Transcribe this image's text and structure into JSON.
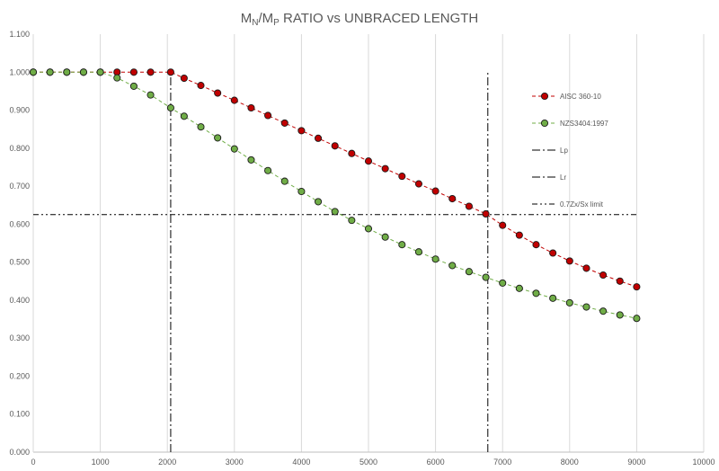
{
  "chart_data": {
    "type": "line",
    "title": {
      "main": "M",
      "sub1": "N",
      "mid": "/M",
      "sub2": "P",
      "rest": " RATIO vs UNBRACED LENGTH"
    },
    "xlabel": "",
    "ylabel": "",
    "xlim": [
      0,
      10000
    ],
    "ylim": [
      0,
      1.1
    ],
    "x_ticks": [
      "0",
      "1000",
      "2000",
      "3000",
      "4000",
      "5000",
      "6000",
      "7000",
      "8000",
      "9000",
      "10000"
    ],
    "y_ticks": [
      "0.000",
      "0.100",
      "0.200",
      "0.300",
      "0.400",
      "0.500",
      "0.600",
      "0.700",
      "0.800",
      "0.900",
      "1.000",
      "1.100"
    ],
    "grid": "vertical",
    "legend_position": "right",
    "series": [
      {
        "name": "AISC 360-10",
        "color": "#c00000",
        "marker": "circle",
        "line": "dashed",
        "x": [
          0,
          250,
          500,
          750,
          1000,
          1250,
          1500,
          1750,
          2050,
          2250,
          2500,
          2750,
          3000,
          3250,
          3500,
          3750,
          4000,
          4250,
          4500,
          4750,
          5000,
          5250,
          5500,
          5750,
          6000,
          6250,
          6500,
          6750,
          7000,
          7250,
          7500,
          7750,
          8000,
          8250,
          8500,
          8750,
          9000
        ],
        "y": [
          1.0,
          1.0,
          1.0,
          1.0,
          1.0,
          1.0,
          1.0,
          1.0,
          1.0,
          0.984,
          0.965,
          0.945,
          0.926,
          0.906,
          0.886,
          0.866,
          0.846,
          0.826,
          0.806,
          0.786,
          0.766,
          0.746,
          0.726,
          0.706,
          0.687,
          0.667,
          0.647,
          0.627,
          0.597,
          0.571,
          0.546,
          0.524,
          0.503,
          0.484,
          0.466,
          0.45,
          0.435
        ]
      },
      {
        "name": "NZS3404:1997",
        "color": "#70ad47",
        "marker": "circle",
        "line": "dashed",
        "x": [
          0,
          250,
          500,
          750,
          1000,
          1250,
          1500,
          1750,
          2050,
          2250,
          2500,
          2750,
          3000,
          3250,
          3500,
          3750,
          4000,
          4250,
          4500,
          4750,
          5000,
          5250,
          5500,
          5750,
          6000,
          6250,
          6500,
          6750,
          7000,
          7250,
          7500,
          7750,
          8000,
          8250,
          8500,
          8750,
          9000
        ],
        "y": [
          1.0,
          1.0,
          1.0,
          1.0,
          1.0,
          0.985,
          0.963,
          0.94,
          0.906,
          0.884,
          0.856,
          0.827,
          0.798,
          0.769,
          0.741,
          0.713,
          0.686,
          0.659,
          0.633,
          0.61,
          0.588,
          0.566,
          0.546,
          0.527,
          0.508,
          0.491,
          0.475,
          0.46,
          0.445,
          0.431,
          0.418,
          0.405,
          0.393,
          0.382,
          0.371,
          0.361,
          0.352
        ]
      },
      {
        "name": "Lp",
        "color": "#000000",
        "line": "dash-dot",
        "x": [
          2050,
          2050
        ],
        "y": [
          0,
          1.0
        ]
      },
      {
        "name": "Lr",
        "color": "#000000",
        "line": "dash-dot",
        "x": [
          6780,
          6780
        ],
        "y": [
          0,
          1.0
        ]
      },
      {
        "name": "0.7Zx/Sx limit",
        "color": "#000000",
        "line": "dash-dot-dot",
        "x": [
          0,
          9000
        ],
        "y": [
          0.625,
          0.625
        ]
      }
    ]
  }
}
